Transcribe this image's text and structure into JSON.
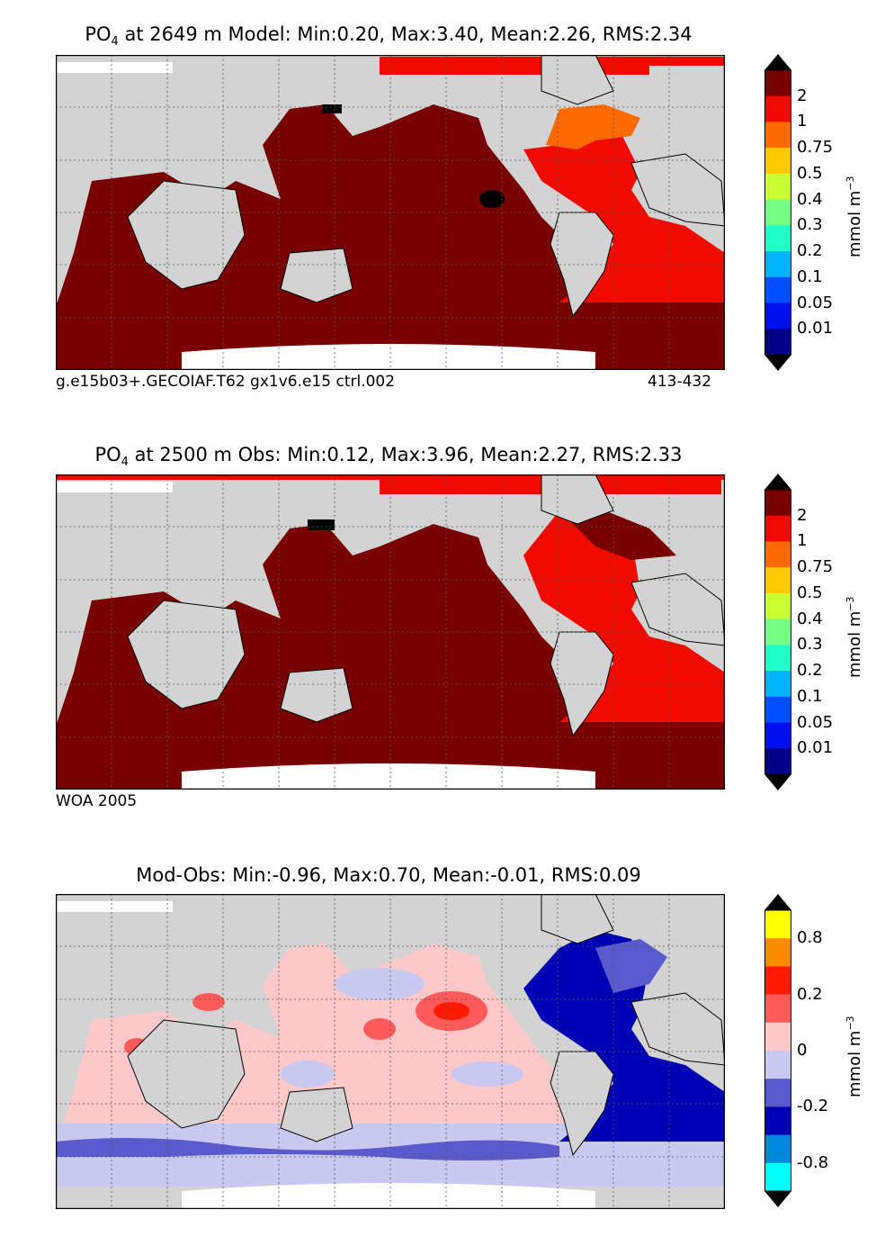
{
  "panels": [
    {
      "title_prefix": "PO",
      "title_sub": "4",
      "title_rest": " at 2649 m Model: Min:0.20, Max:3.40, Mean:2.26, RMS:2.34",
      "note_left": "g.e15b03+.GECOIAF.T62 gx1v6.e15 ctrl.002",
      "note_right": "413-432",
      "colorbar_label": "mmol m",
      "colorbar_label_sup": "−3",
      "colorbar_ticks": [
        "2",
        "1",
        "0.75",
        "0.5",
        "0.4",
        "0.3",
        "0.2",
        "0.1",
        "0.05",
        "0.01"
      ],
      "colorbar_colors": [
        "#7a0000",
        "#f00a00",
        "#ff6a00",
        "#ffc800",
        "#c8ff30",
        "#74ff84",
        "#1effc8",
        "#00b4ff",
        "#0050ff",
        "#0010ee",
        "#00008a"
      ]
    },
    {
      "title_prefix": "PO",
      "title_sub": "4",
      "title_rest": " at 2500 m Obs: Min:0.12, Max:3.96, Mean:2.27, RMS:2.33",
      "note_left": "WOA 2005",
      "colorbar_label": "mmol m",
      "colorbar_label_sup": "−3",
      "colorbar_ticks": [
        "2",
        "1",
        "0.75",
        "0.5",
        "0.4",
        "0.3",
        "0.2",
        "0.1",
        "0.05",
        "0.01"
      ],
      "colorbar_colors": [
        "#7a0000",
        "#f00a00",
        "#ff6a00",
        "#ffc800",
        "#c8ff30",
        "#74ff84",
        "#1effc8",
        "#00b4ff",
        "#0050ff",
        "#0010ee",
        "#00008a"
      ]
    },
    {
      "title": "Mod-Obs: Min:-0.96, Max:0.70, Mean:-0.01, RMS:0.09",
      "colorbar_label": "mmol m",
      "colorbar_label_sup": "−3",
      "colorbar_ticks": [
        "0.8",
        "0.2",
        "0",
        "-0.2",
        "-0.8"
      ],
      "colorbar_colors": [
        "#ffff00",
        "#ff8c00",
        "#ff1a00",
        "#ff5a5a",
        "#ffc8c8",
        "#c8c8f0",
        "#5a5acc",
        "#0000b4",
        "#0088dd",
        "#00ffff"
      ]
    }
  ],
  "chart_data": [
    {
      "type": "heatmap",
      "variable": "PO4",
      "depth_m": 2649,
      "source": "Model",
      "stats": {
        "min": 0.2,
        "max": 3.4,
        "mean": 2.26,
        "rms": 2.34
      },
      "levels": [
        0.01,
        0.05,
        0.1,
        0.2,
        0.3,
        0.4,
        0.5,
        0.75,
        1,
        2
      ],
      "units": "mmol m^-3"
    },
    {
      "type": "heatmap",
      "variable": "PO4",
      "depth_m": 2500,
      "source": "Obs",
      "stats": {
        "min": 0.12,
        "max": 3.96,
        "mean": 2.27,
        "rms": 2.33
      },
      "levels": [
        0.01,
        0.05,
        0.1,
        0.2,
        0.3,
        0.4,
        0.5,
        0.75,
        1,
        2
      ],
      "units": "mmol m^-3"
    },
    {
      "type": "heatmap",
      "variable": "Mod-Obs",
      "stats": {
        "min": -0.96,
        "max": 0.7,
        "mean": -0.01,
        "rms": 0.09
      },
      "levels": [
        -0.8,
        -0.2,
        0,
        0.2,
        0.8
      ],
      "units": "mmol m^-3"
    }
  ]
}
